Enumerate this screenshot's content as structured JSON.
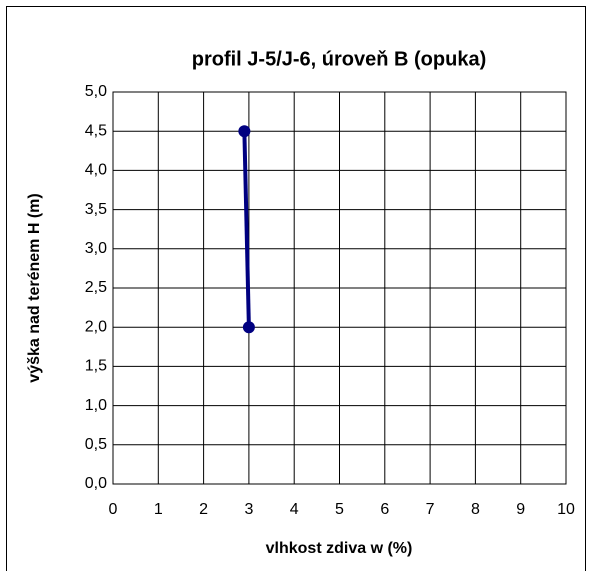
{
  "chart_data": {
    "type": "line",
    "title": "profil J-5/J-6, úroveň B (opuka)",
    "xlabel": "vlhkost zdiva w (%)",
    "ylabel": "výška nad terénem  H (m)",
    "series": [
      {
        "color": "#000080",
        "x": [
          2.9,
          3.0
        ],
        "values": [
          4.5,
          2.0
        ]
      }
    ],
    "xlim": [
      0,
      10
    ],
    "xticks": [
      0,
      1,
      2,
      3,
      4,
      5,
      6,
      7,
      8,
      9,
      10
    ],
    "ylim": [
      0,
      5
    ],
    "yticks": [
      {
        "value": 0,
        "label": "0,0"
      },
      {
        "value": 0.5,
        "label": "0,5"
      },
      {
        "value": 1,
        "label": "1,0"
      },
      {
        "value": 1.5,
        "label": "1,5"
      },
      {
        "value": 2,
        "label": "2,0"
      },
      {
        "value": 2.5,
        "label": "2,5"
      },
      {
        "value": 3,
        "label": "3,0"
      },
      {
        "value": 3.5,
        "label": "3,5"
      },
      {
        "value": 4,
        "label": "4,0"
      },
      {
        "value": 4.5,
        "label": "4,5"
      },
      {
        "value": 5,
        "label": "5,0"
      }
    ],
    "grid": true
  }
}
